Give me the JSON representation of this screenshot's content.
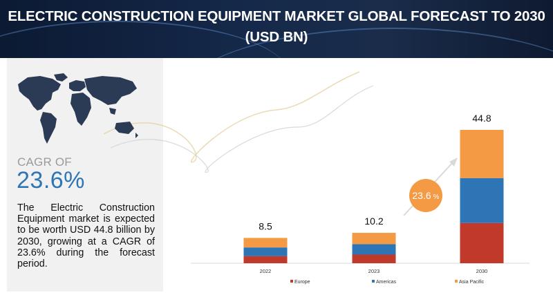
{
  "title_line1": "ELECTRIC CONSTRUCTION EQUIPMENT MARKET GLOBAL FORECAST TO 2030",
  "title_line2": "(USD BN)",
  "cagr_label": "CAGR OF",
  "cagr_value": "23.6%",
  "cagr_bubble_number": "23.6",
  "cagr_bubble_unit": "%",
  "description": "The Electric Construction Equipment market is expected to be worth USD 44.8 billion by 2030, growing at a CAGR of 23.6% during the forecast period.",
  "colors": {
    "header_bg": "#15294a",
    "europe": "#c0392b",
    "americas": "#2e75b6",
    "asia_pacific": "#f59a44",
    "cagr_text": "#2e75b6",
    "panel_bg": "#f1f1f1"
  },
  "icons": [
    "world-map-icon",
    "growth-arrow-icon"
  ],
  "chart_data": {
    "type": "bar",
    "stacked": true,
    "categories": [
      "2022",
      "2023",
      "2030"
    ],
    "totals": [
      8.5,
      10.2,
      44.8
    ],
    "total_labels": [
      "8.5",
      "10.2",
      "44.8"
    ],
    "series": [
      {
        "name": "Europe",
        "values": [
          2.4,
          2.9,
          13.5
        ]
      },
      {
        "name": "Americas",
        "values": [
          2.9,
          3.5,
          15.1
        ]
      },
      {
        "name": "Asia Pacific",
        "values": [
          3.2,
          3.8,
          16.2
        ]
      }
    ],
    "ylim": [
      0,
      44.8
    ],
    "grid": false,
    "legend_position": "bottom",
    "annotation": "23.6%"
  }
}
